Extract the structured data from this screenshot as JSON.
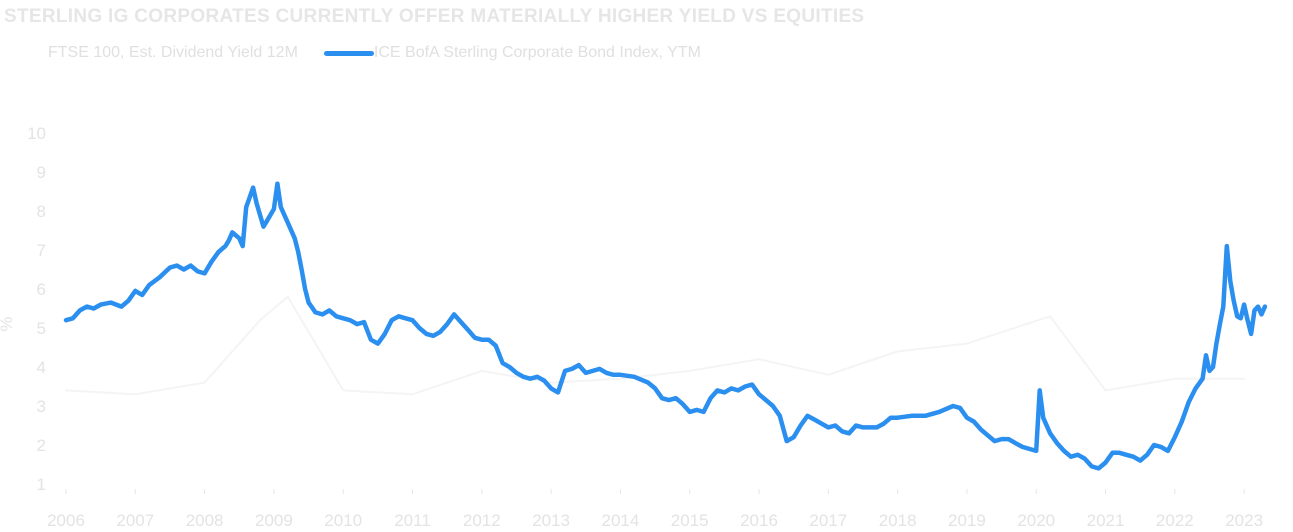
{
  "chart_data": {
    "type": "line",
    "title": "STERLING IG CORPORATES CURRENTLY OFFER MATERIALLY HIGHER YIELD VS EQUITIES",
    "ylabel": "%",
    "xlabel": "",
    "ylim": [
      1,
      10
    ],
    "xlim": [
      2006,
      2023.2
    ],
    "yticks": [
      1,
      2,
      3,
      4,
      5,
      6,
      7,
      8,
      9,
      10
    ],
    "xticks": [
      2006,
      2007,
      2008,
      2009,
      2010,
      2011,
      2012,
      2013,
      2014,
      2015,
      2016,
      2017,
      2018,
      2019,
      2020,
      2021,
      2022,
      2023
    ],
    "legend_position": "top-left",
    "grid": false,
    "series": [
      {
        "name": "FTSE 100, Est. Dividend Yield 12M",
        "color": "#f4f4f4",
        "points": [
          [
            2006.0,
            3.4
          ],
          [
            2007.0,
            3.3
          ],
          [
            2008.0,
            3.6
          ],
          [
            2008.8,
            5.2
          ],
          [
            2009.2,
            5.8
          ],
          [
            2010.0,
            3.4
          ],
          [
            2011.0,
            3.3
          ],
          [
            2012.0,
            3.9
          ],
          [
            2013.0,
            3.6
          ],
          [
            2014.0,
            3.7
          ],
          [
            2015.0,
            3.9
          ],
          [
            2016.0,
            4.2
          ],
          [
            2017.0,
            3.8
          ],
          [
            2018.0,
            4.4
          ],
          [
            2019.0,
            4.6
          ],
          [
            2020.2,
            5.3
          ],
          [
            2021.0,
            3.4
          ],
          [
            2022.0,
            3.7
          ],
          [
            2023.0,
            3.7
          ]
        ]
      },
      {
        "name": "ICE BofA Sterling Corporate Bond Index, YTM",
        "color": "#2b8ff0",
        "points": [
          [
            2006.0,
            5.2
          ],
          [
            2006.1,
            5.25
          ],
          [
            2006.2,
            5.45
          ],
          [
            2006.3,
            5.55
          ],
          [
            2006.4,
            5.5
          ],
          [
            2006.5,
            5.6
          ],
          [
            2006.65,
            5.65
          ],
          [
            2006.8,
            5.55
          ],
          [
            2006.9,
            5.7
          ],
          [
            2007.0,
            5.95
          ],
          [
            2007.1,
            5.85
          ],
          [
            2007.2,
            6.1
          ],
          [
            2007.35,
            6.3
          ],
          [
            2007.5,
            6.55
          ],
          [
            2007.6,
            6.6
          ],
          [
            2007.7,
            6.5
          ],
          [
            2007.8,
            6.6
          ],
          [
            2007.9,
            6.45
          ],
          [
            2008.0,
            6.4
          ],
          [
            2008.1,
            6.7
          ],
          [
            2008.2,
            6.95
          ],
          [
            2008.3,
            7.1
          ],
          [
            2008.35,
            7.25
          ],
          [
            2008.4,
            7.45
          ],
          [
            2008.5,
            7.3
          ],
          [
            2008.55,
            7.1
          ],
          [
            2008.6,
            8.1
          ],
          [
            2008.65,
            8.35
          ],
          [
            2008.7,
            8.6
          ],
          [
            2008.75,
            8.2
          ],
          [
            2008.8,
            7.9
          ],
          [
            2008.85,
            7.6
          ],
          [
            2008.9,
            7.75
          ],
          [
            2009.0,
            8.05
          ],
          [
            2009.05,
            8.7
          ],
          [
            2009.1,
            8.1
          ],
          [
            2009.2,
            7.7
          ],
          [
            2009.3,
            7.3
          ],
          [
            2009.35,
            6.95
          ],
          [
            2009.4,
            6.5
          ],
          [
            2009.45,
            6.0
          ],
          [
            2009.5,
            5.65
          ],
          [
            2009.6,
            5.4
          ],
          [
            2009.7,
            5.35
          ],
          [
            2009.8,
            5.45
          ],
          [
            2009.9,
            5.3
          ],
          [
            2010.0,
            5.25
          ],
          [
            2010.1,
            5.2
          ],
          [
            2010.2,
            5.1
          ],
          [
            2010.3,
            5.15
          ],
          [
            2010.4,
            4.7
          ],
          [
            2010.5,
            4.6
          ],
          [
            2010.6,
            4.85
          ],
          [
            2010.7,
            5.2
          ],
          [
            2010.8,
            5.3
          ],
          [
            2010.9,
            5.25
          ],
          [
            2011.0,
            5.2
          ],
          [
            2011.1,
            5.0
          ],
          [
            2011.2,
            4.85
          ],
          [
            2011.3,
            4.8
          ],
          [
            2011.4,
            4.9
          ],
          [
            2011.5,
            5.1
          ],
          [
            2011.6,
            5.35
          ],
          [
            2011.7,
            5.15
          ],
          [
            2011.8,
            4.95
          ],
          [
            2011.9,
            4.75
          ],
          [
            2012.0,
            4.7
          ],
          [
            2012.1,
            4.7
          ],
          [
            2012.2,
            4.55
          ],
          [
            2012.3,
            4.1
          ],
          [
            2012.4,
            4.0
          ],
          [
            2012.5,
            3.85
          ],
          [
            2012.6,
            3.75
          ],
          [
            2012.7,
            3.7
          ],
          [
            2012.8,
            3.75
          ],
          [
            2012.9,
            3.65
          ],
          [
            2013.0,
            3.45
          ],
          [
            2013.1,
            3.35
          ],
          [
            2013.2,
            3.9
          ],
          [
            2013.3,
            3.95
          ],
          [
            2013.4,
            4.05
          ],
          [
            2013.5,
            3.85
          ],
          [
            2013.6,
            3.9
          ],
          [
            2013.7,
            3.95
          ],
          [
            2013.8,
            3.85
          ],
          [
            2013.9,
            3.8
          ],
          [
            2014.0,
            3.8
          ],
          [
            2014.2,
            3.75
          ],
          [
            2014.4,
            3.6
          ],
          [
            2014.5,
            3.45
          ],
          [
            2014.6,
            3.2
          ],
          [
            2014.7,
            3.15
          ],
          [
            2014.8,
            3.2
          ],
          [
            2014.9,
            3.05
          ],
          [
            2015.0,
            2.85
          ],
          [
            2015.1,
            2.9
          ],
          [
            2015.2,
            2.85
          ],
          [
            2015.3,
            3.2
          ],
          [
            2015.4,
            3.4
          ],
          [
            2015.5,
            3.35
          ],
          [
            2015.6,
            3.45
          ],
          [
            2015.7,
            3.4
          ],
          [
            2015.8,
            3.5
          ],
          [
            2015.9,
            3.55
          ],
          [
            2016.0,
            3.3
          ],
          [
            2016.1,
            3.15
          ],
          [
            2016.2,
            3.0
          ],
          [
            2016.3,
            2.75
          ],
          [
            2016.4,
            2.1
          ],
          [
            2016.5,
            2.2
          ],
          [
            2016.6,
            2.5
          ],
          [
            2016.7,
            2.75
          ],
          [
            2016.8,
            2.65
          ],
          [
            2016.9,
            2.55
          ],
          [
            2017.0,
            2.45
          ],
          [
            2017.1,
            2.5
          ],
          [
            2017.2,
            2.35
          ],
          [
            2017.3,
            2.3
          ],
          [
            2017.4,
            2.5
          ],
          [
            2017.5,
            2.45
          ],
          [
            2017.6,
            2.45
          ],
          [
            2017.7,
            2.45
          ],
          [
            2017.8,
            2.55
          ],
          [
            2017.9,
            2.7
          ],
          [
            2018.0,
            2.7
          ],
          [
            2018.2,
            2.75
          ],
          [
            2018.4,
            2.75
          ],
          [
            2018.6,
            2.85
          ],
          [
            2018.8,
            3.0
          ],
          [
            2018.9,
            2.95
          ],
          [
            2019.0,
            2.7
          ],
          [
            2019.1,
            2.6
          ],
          [
            2019.2,
            2.4
          ],
          [
            2019.3,
            2.25
          ],
          [
            2019.4,
            2.1
          ],
          [
            2019.5,
            2.15
          ],
          [
            2019.6,
            2.15
          ],
          [
            2019.7,
            2.05
          ],
          [
            2019.8,
            1.95
          ],
          [
            2019.9,
            1.9
          ],
          [
            2020.0,
            1.85
          ],
          [
            2020.05,
            3.4
          ],
          [
            2020.1,
            2.7
          ],
          [
            2020.2,
            2.3
          ],
          [
            2020.3,
            2.05
          ],
          [
            2020.4,
            1.85
          ],
          [
            2020.5,
            1.7
          ],
          [
            2020.6,
            1.75
          ],
          [
            2020.7,
            1.65
          ],
          [
            2020.8,
            1.45
          ],
          [
            2020.9,
            1.4
          ],
          [
            2021.0,
            1.55
          ],
          [
            2021.1,
            1.8
          ],
          [
            2021.2,
            1.8
          ],
          [
            2021.3,
            1.75
          ],
          [
            2021.4,
            1.7
          ],
          [
            2021.5,
            1.6
          ],
          [
            2021.6,
            1.75
          ],
          [
            2021.7,
            2.0
          ],
          [
            2021.8,
            1.95
          ],
          [
            2021.9,
            1.85
          ],
          [
            2022.0,
            2.2
          ],
          [
            2022.1,
            2.6
          ],
          [
            2022.2,
            3.1
          ],
          [
            2022.3,
            3.45
          ],
          [
            2022.4,
            3.7
          ],
          [
            2022.45,
            4.3
          ],
          [
            2022.5,
            3.9
          ],
          [
            2022.55,
            4.0
          ],
          [
            2022.6,
            4.6
          ],
          [
            2022.65,
            5.1
          ],
          [
            2022.7,
            5.55
          ],
          [
            2022.75,
            7.1
          ],
          [
            2022.8,
            6.2
          ],
          [
            2022.85,
            5.7
          ],
          [
            2022.9,
            5.3
          ],
          [
            2022.95,
            5.25
          ],
          [
            2023.0,
            5.6
          ],
          [
            2023.05,
            5.2
          ],
          [
            2023.1,
            4.85
          ],
          [
            2023.15,
            5.45
          ],
          [
            2023.2,
            5.55
          ],
          [
            2023.25,
            5.35
          ],
          [
            2023.3,
            5.55
          ]
        ]
      }
    ]
  }
}
